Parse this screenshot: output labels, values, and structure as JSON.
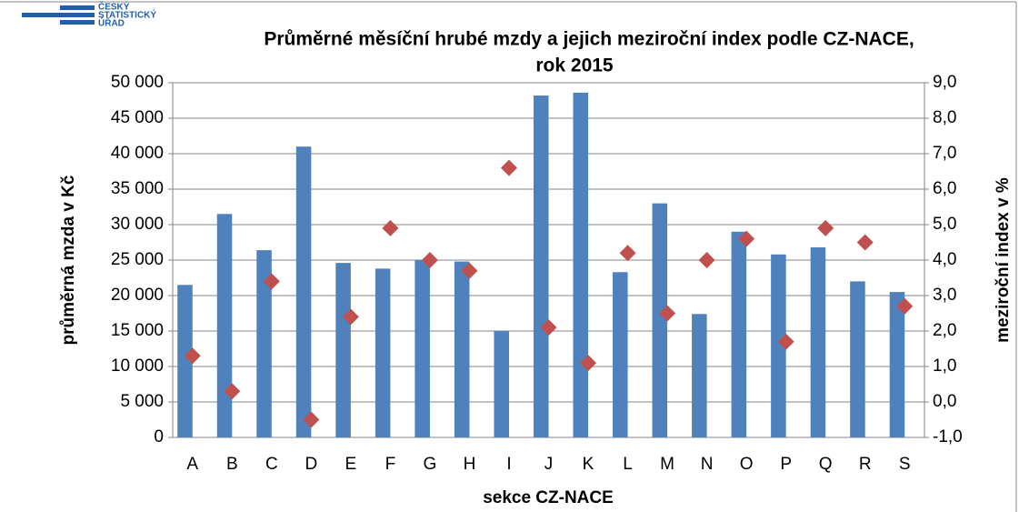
{
  "chart_data": {
    "type": "bar",
    "logo": [
      "ČESKÝ",
      "STATISTICKÝ",
      "ÚŘAD"
    ],
    "title": [
      "Průměrné měsíční hrubé mzdy a jejich meziroční index podle CZ-NACE,",
      "rok 2015"
    ],
    "x_label": "sekce CZ-NACE",
    "y_label": "průměrná mzda v Kč",
    "y2_label": "meziroční index v %",
    "categories": [
      "A",
      "B",
      "C",
      "D",
      "E",
      "F",
      "G",
      "H",
      "I",
      "J",
      "K",
      "L",
      "M",
      "N",
      "O",
      "P",
      "Q",
      "R",
      "S"
    ],
    "series": [
      {
        "type": "bar",
        "color": "#4f81bd",
        "values": [
          21500,
          31500,
          26400,
          41000,
          24600,
          23800,
          25000,
          24800,
          15000,
          48200,
          48600,
          23300,
          33000,
          17400,
          29000,
          25800,
          26800,
          22000,
          20500
        ]
      },
      {
        "type": "scatter",
        "axis": "y2",
        "color": "#c0504d",
        "values": [
          1.3,
          0.3,
          3.4,
          -0.5,
          2.4,
          4.9,
          4.0,
          3.7,
          6.6,
          2.1,
          1.1,
          4.2,
          2.5,
          4.0,
          4.6,
          1.7,
          4.9,
          4.5,
          2.7
        ]
      }
    ],
    "ylim": [
      0,
      50000
    ],
    "yticks": [
      0,
      {
        "value": 5000,
        "label": "5 000"
      },
      {
        "value": 10000,
        "label": "10 000"
      },
      {
        "value": 15000,
        "label": "15 000"
      },
      {
        "value": 20000,
        "label": "20 000"
      },
      {
        "value": 25000,
        "label": "25 000"
      },
      {
        "value": 30000,
        "label": "30 000"
      },
      {
        "value": 35000,
        "label": "35 000"
      },
      {
        "value": 40000,
        "label": "40 000"
      },
      {
        "value": 45000,
        "label": "45 000"
      },
      {
        "value": 50000,
        "label": "50 000"
      }
    ],
    "y2lim": [
      -1,
      9
    ],
    "y2ticks": [
      {
        "value": -1,
        "label": "-1,0"
      },
      {
        "value": 0,
        "label": "0,0"
      },
      {
        "value": 1,
        "label": "1,0"
      },
      {
        "value": 2,
        "label": "2,0"
      },
      {
        "value": 3,
        "label": "3,0"
      },
      {
        "value": 4,
        "label": "4,0"
      },
      {
        "value": 5,
        "label": "5,0"
      },
      {
        "value": 6,
        "label": "6,0"
      },
      {
        "value": 7,
        "label": "7,0"
      },
      {
        "value": 8,
        "label": "8,0"
      },
      {
        "value": 9,
        "label": "9,0"
      }
    ],
    "grid": true
  }
}
